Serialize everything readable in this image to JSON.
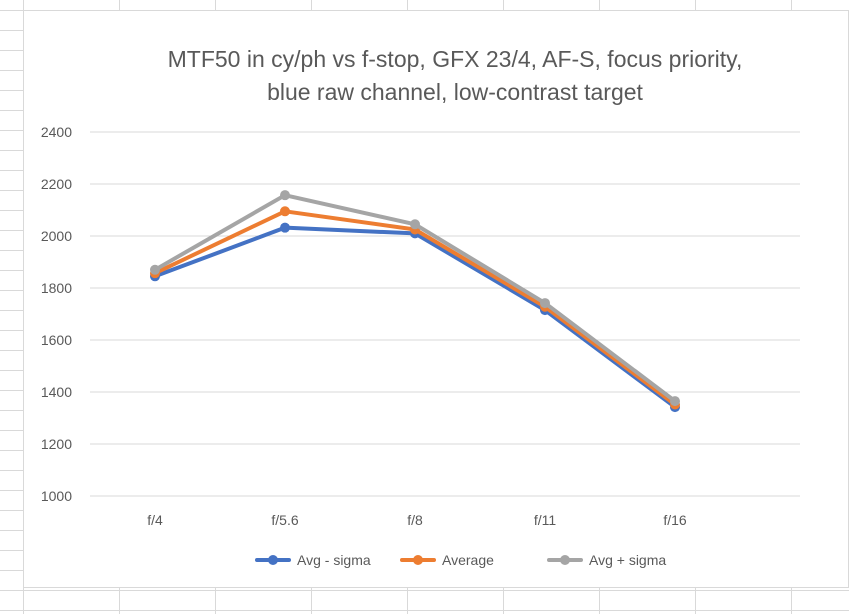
{
  "chart_data": {
    "type": "line",
    "title_lines": [
      "MTF50 in cy/ph vs f-stop, GFX 23/4, AF-S, focus priority,",
      "blue raw channel, low-contrast target"
    ],
    "categories": [
      "f/4",
      "f/5.6",
      "f/8",
      "f/11",
      "f/16"
    ],
    "ylim": [
      1000,
      2400
    ],
    "yticks": [
      "1000",
      "1200",
      "1400",
      "1600",
      "1800",
      "2000",
      "2200",
      "2400"
    ],
    "grid": true,
    "legend_position": "bottom",
    "series": [
      {
        "name": "Avg - sigma",
        "color": "#4472C4",
        "values": [
          1845,
          2032,
          2010,
          1715,
          1342
        ]
      },
      {
        "name": "Average",
        "color": "#ED7D31",
        "values": [
          1857,
          2095,
          2025,
          1728,
          1352
        ]
      },
      {
        "name": "Avg + sigma",
        "color": "#A5A5A5",
        "values": [
          1870,
          2157,
          2045,
          1742,
          1365
        ]
      }
    ]
  }
}
